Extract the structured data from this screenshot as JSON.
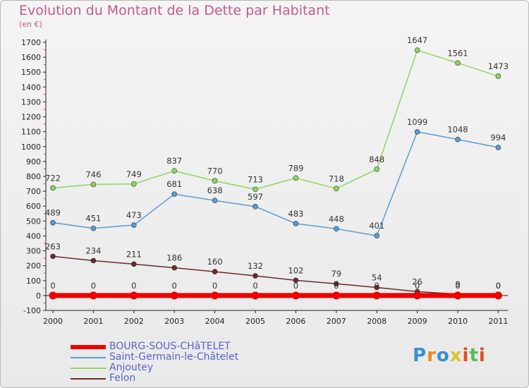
{
  "title": "Evolution du Montant de la Dette par Habitant",
  "subtitle": "(en €)",
  "brand": {
    "text": "Proxiti",
    "colors": [
      "#3a8fd4",
      "#e88a1a",
      "#3a8fd4",
      "#e0c22a",
      "#e8491d",
      "#5cb85c",
      "#e8491d"
    ]
  },
  "chart_data": {
    "type": "line",
    "title": "Evolution du Montant de la Dette par Habitant",
    "ylabel": "(en €)",
    "xlabel": "",
    "x": [
      "2000",
      "2001",
      "2002",
      "2003",
      "2004",
      "2005",
      "2006",
      "2007",
      "2008",
      "2009",
      "2010",
      "2011"
    ],
    "ylim": [
      -100,
      1700
    ],
    "yticks": [
      -100,
      0,
      100,
      200,
      300,
      400,
      500,
      600,
      700,
      800,
      900,
      1000,
      1100,
      1200,
      1300,
      1400,
      1500,
      1600,
      1700
    ],
    "grid": false,
    "legend_position": "bottom-left",
    "series": [
      {
        "name": "BOURG-SOUS-CHâTELET",
        "color": "#ee0000",
        "values": [
          0,
          0,
          0,
          0,
          0,
          0,
          0,
          0,
          0,
          0,
          0,
          0
        ],
        "labels": [
          "0",
          "0",
          "0",
          "0",
          "0",
          "0",
          "0",
          "0",
          "0",
          "0",
          "0",
          "0"
        ]
      },
      {
        "name": "Saint-Germain-le-Châtelet",
        "color": "#5a9bd5",
        "values": [
          489,
          451,
          473,
          681,
          638,
          597,
          483,
          448,
          401,
          1099,
          1048,
          994
        ],
        "labels": [
          "489",
          "451",
          "473",
          "681",
          "638",
          "597",
          "483",
          "448",
          "401",
          "1099",
          "1048",
          "994"
        ]
      },
      {
        "name": "Anjoutey",
        "color": "#8cd660",
        "values": [
          722,
          746,
          749,
          837,
          770,
          713,
          789,
          718,
          848,
          1647,
          1561,
          1473
        ],
        "labels": [
          "722",
          "746",
          "749",
          "837",
          "770",
          "713",
          "789",
          "718",
          "848",
          "1647",
          "1561",
          "1473"
        ]
      },
      {
        "name": "Felon",
        "color": "#6b2a2a",
        "values": [
          263,
          234,
          211,
          186,
          160,
          132,
          102,
          79,
          54,
          26,
          9,
          0
        ],
        "labels": [
          "263",
          "234",
          "211",
          "186",
          "160",
          "132",
          "102",
          "79",
          "54",
          "26",
          "9",
          "0"
        ]
      }
    ]
  }
}
